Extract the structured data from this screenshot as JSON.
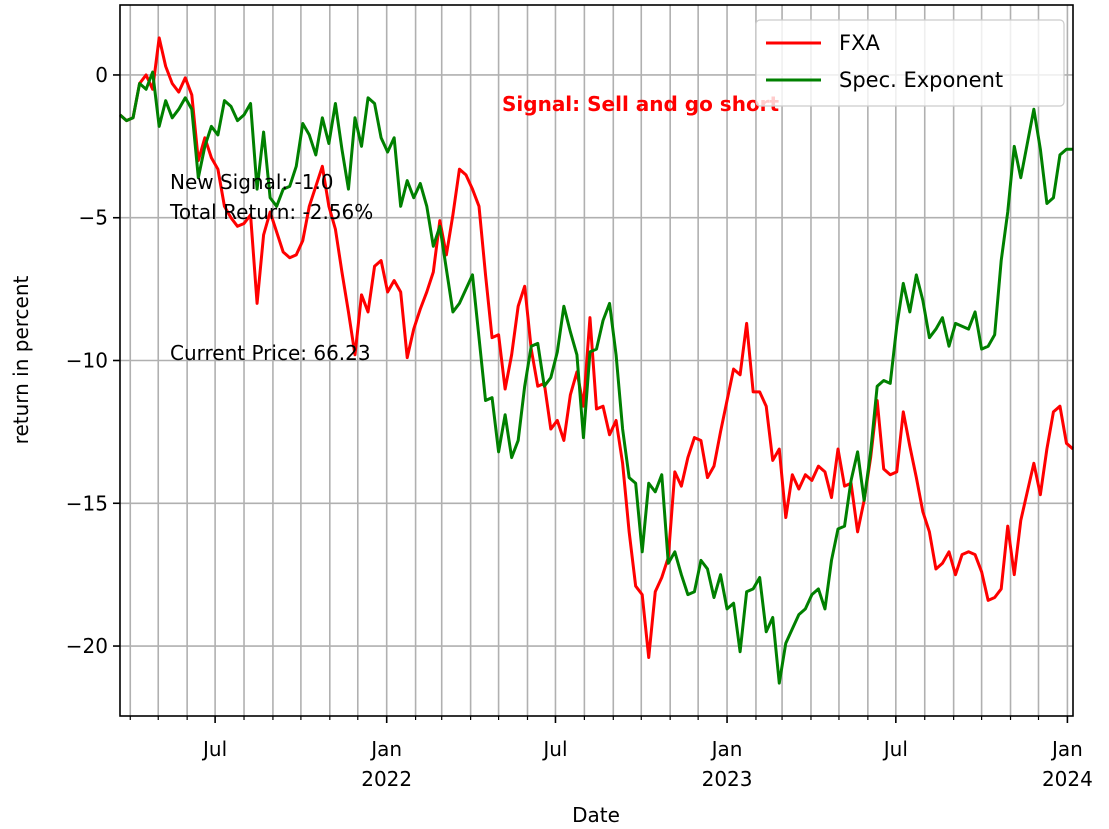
{
  "chart_data": {
    "type": "line",
    "xlabel": "Date",
    "ylabel": "return in percent",
    "x": [
      "2021-03-21",
      "2021-03-28",
      "2021-04-04",
      "2021-04-11",
      "2021-04-18",
      "2021-04-25",
      "2021-05-02",
      "2021-05-09",
      "2021-05-16",
      "2021-05-23",
      "2021-05-30",
      "2021-06-06",
      "2021-06-13",
      "2021-06-20",
      "2021-06-27",
      "2021-07-04",
      "2021-07-11",
      "2021-07-18",
      "2021-07-25",
      "2021-08-01",
      "2021-08-08",
      "2021-08-15",
      "2021-08-22",
      "2021-08-29",
      "2021-09-05",
      "2021-09-12",
      "2021-09-19",
      "2021-09-26",
      "2021-10-03",
      "2021-10-10",
      "2021-10-17",
      "2021-10-24",
      "2021-10-31",
      "2021-11-07",
      "2021-11-14",
      "2021-11-21",
      "2021-11-28",
      "2021-12-05",
      "2021-12-12",
      "2021-12-19",
      "2021-12-26",
      "2022-01-02",
      "2022-01-09",
      "2022-01-16",
      "2022-01-23",
      "2022-01-30",
      "2022-02-06",
      "2022-02-13",
      "2022-02-20",
      "2022-02-27",
      "2022-03-06",
      "2022-03-13",
      "2022-03-20",
      "2022-03-27",
      "2022-04-03",
      "2022-04-10",
      "2022-04-17",
      "2022-04-24",
      "2022-05-01",
      "2022-05-08",
      "2022-05-15",
      "2022-05-22",
      "2022-05-29",
      "2022-06-05",
      "2022-06-12",
      "2022-06-19",
      "2022-06-26",
      "2022-07-03",
      "2022-07-10",
      "2022-07-17",
      "2022-07-24",
      "2022-07-31",
      "2022-08-07",
      "2022-08-14",
      "2022-08-21",
      "2022-08-28",
      "2022-09-04",
      "2022-09-11",
      "2022-09-18",
      "2022-09-25",
      "2022-10-02",
      "2022-10-09",
      "2022-10-16",
      "2022-10-23",
      "2022-10-30",
      "2022-11-06",
      "2022-11-13",
      "2022-11-20",
      "2022-11-27",
      "2022-12-04",
      "2022-12-11",
      "2022-12-18",
      "2022-12-25",
      "2023-01-01",
      "2023-01-08",
      "2023-01-15",
      "2023-01-22",
      "2023-01-29",
      "2023-02-05",
      "2023-02-12",
      "2023-02-19",
      "2023-02-26",
      "2023-03-05",
      "2023-03-12",
      "2023-03-19",
      "2023-03-26",
      "2023-04-02",
      "2023-04-09",
      "2023-04-16",
      "2023-04-23",
      "2023-04-30",
      "2023-05-07",
      "2023-05-14",
      "2023-05-21",
      "2023-05-28",
      "2023-06-04",
      "2023-06-11",
      "2023-06-18",
      "2023-06-25",
      "2023-07-02",
      "2023-07-09",
      "2023-07-16",
      "2023-07-23",
      "2023-07-30",
      "2023-08-06",
      "2023-08-13",
      "2023-08-20",
      "2023-08-27",
      "2023-09-03",
      "2023-09-10",
      "2023-09-17",
      "2023-09-24",
      "2023-10-01",
      "2023-10-08",
      "2023-10-15",
      "2023-10-22",
      "2023-10-29",
      "2023-11-05",
      "2023-11-12",
      "2023-11-19",
      "2023-11-26",
      "2023-12-03",
      "2023-12-10",
      "2023-12-17",
      "2023-12-24",
      "2023-12-31",
      "2024-01-07"
    ],
    "series": [
      {
        "name": "FXA",
        "color": "#ff0000",
        "values": [
          -1.4,
          -1.6,
          -1.5,
          -0.3,
          0.0,
          -0.5,
          1.3,
          0.3,
          -0.3,
          -0.6,
          -0.1,
          -0.7,
          -3.0,
          -2.2,
          -2.9,
          -3.3,
          -4.6,
          -5.0,
          -5.3,
          -5.2,
          -4.9,
          -8.0,
          -5.6,
          -4.8,
          -5.5,
          -6.2,
          -6.4,
          -6.3,
          -5.8,
          -4.6,
          -3.9,
          -3.2,
          -4.6,
          -5.4,
          -6.9,
          -8.3,
          -9.8,
          -7.7,
          -8.3,
          -6.7,
          -6.5,
          -7.6,
          -7.2,
          -7.6,
          -9.9,
          -8.9,
          -8.2,
          -7.6,
          -6.9,
          -5.1,
          -6.3,
          -4.9,
          -3.3,
          -3.5,
          -4.0,
          -4.6,
          -7.0,
          -9.2,
          -9.1,
          -11.0,
          -9.8,
          -8.1,
          -7.4,
          -9.6,
          -10.9,
          -10.8,
          -12.4,
          -12.1,
          -12.8,
          -11.2,
          -10.4,
          -11.6,
          -8.5,
          -11.7,
          -11.6,
          -12.6,
          -12.1,
          -13.6,
          -16.0,
          -17.9,
          -18.2,
          -20.4,
          -18.1,
          -17.6,
          -16.9,
          -13.9,
          -14.4,
          -13.4,
          -12.7,
          -12.8,
          -14.1,
          -13.7,
          -12.5,
          -11.4,
          -10.3,
          -10.5,
          -8.7,
          -11.1,
          -11.1,
          -11.6,
          -13.5,
          -13.1,
          -15.5,
          -14.0,
          -14.5,
          -14.0,
          -14.2,
          -13.7,
          -13.9,
          -14.8,
          -13.1,
          -14.4,
          -14.3,
          -16.0,
          -14.9,
          -13.4,
          -11.4,
          -13.8,
          -14.0,
          -13.9,
          -11.8,
          -13.0,
          -14.1,
          -15.3,
          -16.0,
          -17.3,
          -17.1,
          -16.7,
          -17.5,
          -16.8,
          -16.7,
          -16.8,
          -17.4,
          -18.4,
          -18.3,
          -18.0,
          -15.8,
          -17.5,
          -15.6,
          -14.6,
          -13.6,
          -14.7,
          -13.1,
          -11.8,
          -11.6,
          -12.9,
          -13.1
        ]
      },
      {
        "name": "Spec. Exponent",
        "color": "#008000",
        "values": [
          -1.4,
          -1.6,
          -1.5,
          -0.3,
          -0.5,
          0.1,
          -1.8,
          -0.9,
          -1.5,
          -1.2,
          -0.8,
          -1.2,
          -3.6,
          -2.5,
          -1.8,
          -2.1,
          -0.9,
          -1.1,
          -1.6,
          -1.4,
          -1.0,
          -4.0,
          -2.0,
          -4.3,
          -4.6,
          -4.0,
          -3.9,
          -3.2,
          -1.7,
          -2.1,
          -2.8,
          -1.5,
          -2.4,
          -1.0,
          -2.6,
          -4.0,
          -1.5,
          -2.5,
          -0.8,
          -1.0,
          -2.2,
          -2.7,
          -2.2,
          -4.6,
          -3.7,
          -4.3,
          -3.8,
          -4.6,
          -6.0,
          -5.3,
          -6.8,
          -8.3,
          -8.0,
          -7.5,
          -7.0,
          -9.2,
          -11.4,
          -11.3,
          -13.2,
          -11.9,
          -13.4,
          -12.8,
          -10.9,
          -9.5,
          -9.4,
          -10.9,
          -10.6,
          -9.7,
          -8.1,
          -9.0,
          -9.8,
          -12.7,
          -9.7,
          -9.6,
          -8.6,
          -8.0,
          -9.8,
          -12.4,
          -14.1,
          -14.3,
          -16.7,
          -14.3,
          -14.6,
          -14.0,
          -17.1,
          -16.7,
          -17.5,
          -18.2,
          -18.1,
          -17.0,
          -17.3,
          -18.3,
          -17.5,
          -18.7,
          -18.5,
          -20.2,
          -18.1,
          -18.0,
          -17.6,
          -19.5,
          -19.0,
          -21.3,
          -19.9,
          -19.4,
          -18.9,
          -18.7,
          -18.2,
          -18.0,
          -18.7,
          -17.0,
          -15.9,
          -15.8,
          -14.2,
          -13.2,
          -14.9,
          -13.2,
          -10.9,
          -10.7,
          -10.8,
          -8.8,
          -7.3,
          -8.3,
          -7.0,
          -7.9,
          -9.2,
          -8.9,
          -8.5,
          -9.5,
          -8.7,
          -8.8,
          -8.9,
          -8.3,
          -9.6,
          -9.5,
          -9.1,
          -6.5,
          -4.8,
          -2.5,
          -3.6,
          -2.4,
          -1.2,
          -2.6,
          -4.5,
          -4.3,
          -2.8,
          -2.6,
          -2.6
        ]
      }
    ],
    "xlim": [
      "2021-03-21",
      "2024-01-07"
    ],
    "xticks": [
      {
        "value": "2021-07-01",
        "label": "Jul"
      },
      {
        "value": "2022-01-01",
        "label": "Jan\n2022"
      },
      {
        "value": "2022-07-01",
        "label": "Jul"
      },
      {
        "value": "2023-01-01",
        "label": "Jan\n2023"
      },
      {
        "value": "2023-07-01",
        "label": "Jul"
      },
      {
        "value": "2024-01-01",
        "label": "Jan\n2024"
      }
    ],
    "xminorticks": [
      "2021-04-01",
      "2021-05-01",
      "2021-06-01",
      "2021-08-01",
      "2021-09-01",
      "2021-10-01",
      "2021-11-01",
      "2021-12-01",
      "2022-02-01",
      "2022-03-01",
      "2022-04-01",
      "2022-05-01",
      "2022-06-01",
      "2022-08-01",
      "2022-09-01",
      "2022-10-01",
      "2022-11-01",
      "2022-12-01",
      "2023-02-01",
      "2023-03-01",
      "2023-04-01",
      "2023-05-01",
      "2023-06-01",
      "2023-08-01",
      "2023-09-01",
      "2023-10-01",
      "2023-11-01",
      "2023-12-01"
    ],
    "ylim": [
      -22.45,
      2.45
    ],
    "yticks": [
      0,
      {
        "value": -5,
        "label": "−5"
      },
      {
        "value": -10,
        "label": "−10"
      },
      {
        "value": -15,
        "label": "−15"
      },
      {
        "value": -20,
        "label": "−20"
      }
    ],
    "grid": true,
    "legend": "upper right",
    "annotations": [
      {
        "text": "Signal: Sell and go short",
        "color": "#ff0000",
        "bold": true
      },
      {
        "text": "New Signal: -1.0",
        "color": "#000000",
        "bold": false
      },
      {
        "text": "Total Return: -2.56%",
        "color": "#000000",
        "bold": false
      },
      {
        "text": "Current Price: 66.23",
        "color": "#000000",
        "bold": false
      }
    ]
  }
}
